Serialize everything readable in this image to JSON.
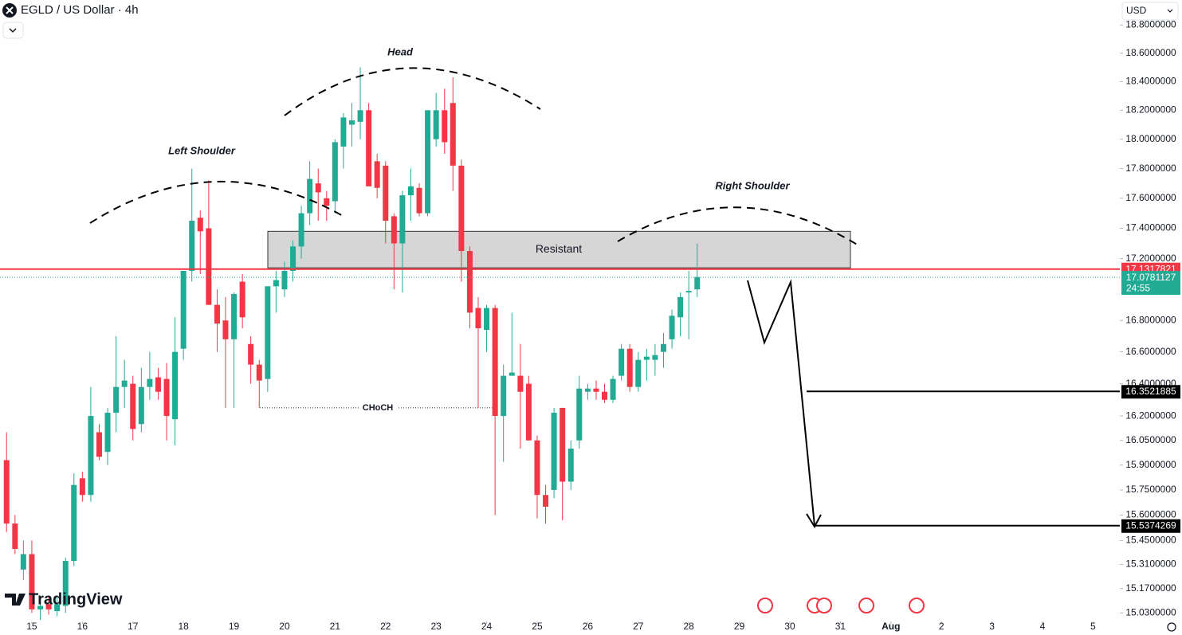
{
  "toolbar": {
    "currency": "USD",
    "logo": "TradingView"
  },
  "chart_data": {
    "type": "candlestick",
    "title": "EGLD / US Dollar · 4h",
    "log_scale": true,
    "grid": false,
    "up_color": "#22ab94",
    "down_color": "#f23645",
    "ylim": [
      14.99,
      18.98
    ],
    "xlim": [
      14.37,
      36.53
    ],
    "yticks": [
      {
        "value": 18.8,
        "label": "18.8000000"
      },
      {
        "value": 18.6,
        "label": "18.6000000"
      },
      {
        "value": 18.4,
        "label": "18.4000000"
      },
      {
        "value": 18.2,
        "label": "18.2000000"
      },
      {
        "value": 18.0,
        "label": "18.0000000"
      },
      {
        "value": 17.8,
        "label": "17.8000000"
      },
      {
        "value": 17.6,
        "label": "17.6000000"
      },
      {
        "value": 17.4,
        "label": "17.4000000"
      },
      {
        "value": 17.2,
        "label": "17.2000000"
      },
      {
        "value": 16.8,
        "label": "16.8000000"
      },
      {
        "value": 16.6,
        "label": "16.6000000"
      },
      {
        "value": 16.4,
        "label": "16.4000000"
      },
      {
        "value": 16.2,
        "label": "16.2000000"
      },
      {
        "value": 16.05,
        "label": "16.0500000"
      },
      {
        "value": 15.9,
        "label": "15.9000000"
      },
      {
        "value": 15.75,
        "label": "15.7500000"
      },
      {
        "value": 15.6,
        "label": "15.6000000"
      },
      {
        "value": 15.45,
        "label": "15.4500000"
      },
      {
        "value": 15.31,
        "label": "15.3100000"
      },
      {
        "value": 15.17,
        "label": "15.1700000"
      },
      {
        "value": 15.03,
        "label": "15.0300000"
      }
    ],
    "xticks": [
      15,
      16,
      17,
      18,
      19,
      20,
      21,
      22,
      23,
      24,
      25,
      26,
      27,
      28,
      29,
      30,
      31,
      {
        "value": 32,
        "label": "Aug"
      },
      {
        "value": 33,
        "label": "2"
      },
      {
        "value": 34,
        "label": "3"
      },
      {
        "value": 35,
        "label": "4"
      },
      {
        "value": 36,
        "label": "5"
      }
    ],
    "x": [
      14.5,
      14.667,
      14.833,
      15,
      15.167,
      15.333,
      15.5,
      15.667,
      15.833,
      16,
      16.167,
      16.333,
      16.5,
      16.667,
      16.833,
      17,
      17.167,
      17.333,
      17.5,
      17.667,
      17.833,
      18,
      18.167,
      18.333,
      18.5,
      18.667,
      18.833,
      19,
      19.167,
      19.333,
      19.5,
      19.667,
      19.833,
      20,
      20.167,
      20.333,
      20.5,
      20.667,
      20.833,
      21,
      21.167,
      21.333,
      21.5,
      21.667,
      21.833,
      22,
      22.167,
      22.333,
      22.5,
      22.667,
      22.833,
      23,
      23.167,
      23.333,
      23.5,
      23.667,
      23.833,
      24,
      24.167,
      24.333,
      24.5,
      24.667,
      24.833,
      25,
      25.167,
      25.333,
      25.5,
      25.667,
      25.833,
      26,
      26.167,
      26.333,
      26.5,
      26.667,
      26.833,
      27,
      27.167,
      27.333,
      27.5,
      27.667,
      27.833,
      28,
      28.167
    ],
    "open": [
      15.93,
      15.55,
      15.28,
      15.37,
      15.05,
      15.08,
      15.04,
      15.07,
      15.33,
      15.82,
      15.72,
      16.1,
      15.98,
      16.22,
      16.38,
      16.4,
      16.15,
      16.38,
      16.44,
      16.43,
      16.18,
      16.62,
      17.12,
      17.47,
      17.4,
      16.9,
      16.8,
      16.68,
      17.05,
      16.65,
      16.52,
      16.43,
      17.02,
      17.0,
      17.12,
      17.28,
      17.5,
      17.7,
      17.6,
      17.58,
      17.95,
      18.1,
      18.12,
      18.2,
      17.85,
      17.82,
      17.48,
      17.3,
      17.62,
      17.67,
      17.5,
      18.0,
      18.2,
      18.25,
      17.82,
      17.25,
      16.88,
      16.74,
      16.88,
      16.2,
      16.45,
      16.45,
      16.4,
      16.05,
      15.72,
      15.75,
      16.25,
      15.8,
      16.05,
      16.35,
      16.37,
      16.35,
      16.3,
      16.45,
      16.62,
      16.38,
      16.55,
      16.55,
      16.6,
      16.68,
      16.82,
      16.98,
      17.0
    ],
    "high": [
      16.1,
      15.6,
      15.45,
      15.45,
      15.1,
      15.12,
      15.12,
      15.35,
      15.85,
      15.86,
      16.38,
      16.15,
      16.25,
      16.7,
      16.55,
      16.45,
      16.5,
      16.6,
      16.5,
      16.53,
      16.82,
      17.1,
      17.8,
      17.52,
      17.72,
      17.0,
      16.95,
      16.98,
      17.1,
      16.7,
      16.55,
      17.02,
      17.12,
      17.18,
      17.32,
      17.55,
      17.85,
      17.8,
      17.65,
      18.0,
      18.18,
      18.25,
      18.5,
      18.25,
      17.9,
      17.85,
      17.5,
      17.65,
      17.8,
      17.7,
      18.2,
      18.32,
      18.35,
      18.43,
      17.86,
      17.28,
      16.95,
      16.9,
      16.9,
      16.52,
      16.85,
      16.65,
      16.45,
      16.08,
      15.78,
      16.25,
      16.25,
      16.05,
      16.45,
      16.4,
      16.42,
      16.4,
      16.45,
      16.65,
      16.65,
      16.6,
      16.62,
      16.65,
      16.72,
      16.87,
      16.98,
      17.12,
      17.3
    ],
    "low": [
      15.5,
      15.37,
      15.22,
      15.03,
      14.99,
      15.02,
      15.01,
      15.03,
      15.3,
      15.68,
      15.68,
      15.93,
      15.9,
      16.1,
      16.25,
      16.05,
      16.1,
      16.3,
      16.3,
      16.05,
      16.02,
      16.55,
      17.05,
      17.1,
      16.9,
      16.6,
      16.25,
      16.25,
      16.75,
      16.4,
      16.25,
      16.35,
      16.85,
      16.95,
      17.05,
      17.2,
      17.42,
      17.45,
      17.45,
      17.5,
      17.8,
      17.95,
      18.0,
      17.7,
      17.6,
      17.3,
      17.0,
      16.98,
      17.45,
      17.48,
      17.48,
      17.95,
      17.9,
      17.65,
      17.05,
      16.75,
      16.25,
      16.6,
      15.6,
      15.92,
      16.45,
      16.0,
      16.05,
      15.58,
      15.55,
      15.7,
      15.57,
      15.75,
      16.0,
      16.3,
      16.3,
      16.28,
      16.28,
      16.42,
      16.35,
      16.35,
      16.42,
      16.45,
      16.5,
      16.62,
      16.7,
      16.68,
      16.95
    ],
    "close": [
      15.55,
      15.4,
      15.37,
      15.05,
      15.07,
      15.05,
      15.08,
      15.33,
      15.78,
      15.72,
      16.2,
      15.95,
      16.22,
      16.38,
      16.42,
      16.12,
      16.38,
      16.43,
      16.35,
      16.2,
      16.6,
      17.12,
      17.45,
      17.38,
      16.9,
      16.78,
      16.68,
      16.97,
      16.82,
      16.52,
      16.42,
      17.02,
      17.06,
      17.12,
      17.28,
      17.5,
      17.73,
      17.64,
      17.55,
      17.98,
      18.15,
      18.13,
      18.2,
      17.68,
      17.67,
      17.45,
      17.3,
      17.62,
      17.68,
      17.5,
      18.2,
      18.2,
      17.98,
      17.82,
      17.25,
      16.85,
      16.75,
      16.88,
      16.2,
      16.45,
      16.47,
      16.35,
      16.05,
      15.72,
      15.65,
      16.22,
      15.8,
      16.0,
      16.37,
      16.37,
      16.35,
      16.3,
      16.43,
      16.62,
      16.38,
      16.55,
      16.57,
      16.58,
      16.65,
      16.83,
      16.95,
      16.99,
      17.08
    ],
    "zone": {
      "label": "Resistant",
      "low": 17.14,
      "high": 17.38,
      "color": "#d6d6d6"
    },
    "choch": {
      "label": "CHoCH",
      "value": 16.25
    },
    "annotations": [
      "Left Shoulder",
      "Head",
      "Right Shoulder"
    ],
    "price_lines": [
      {
        "value": 17.1317821,
        "color": "#f23645",
        "style": "solid"
      },
      {
        "value": 17.0781127,
        "color": "#22ab94",
        "style": "dotted",
        "countdown": "24:55"
      },
      {
        "value": 16.3521885,
        "color": "#000000",
        "style": "solid"
      },
      {
        "value": 15.5374269,
        "color": "#000000",
        "style": "solid"
      }
    ]
  }
}
